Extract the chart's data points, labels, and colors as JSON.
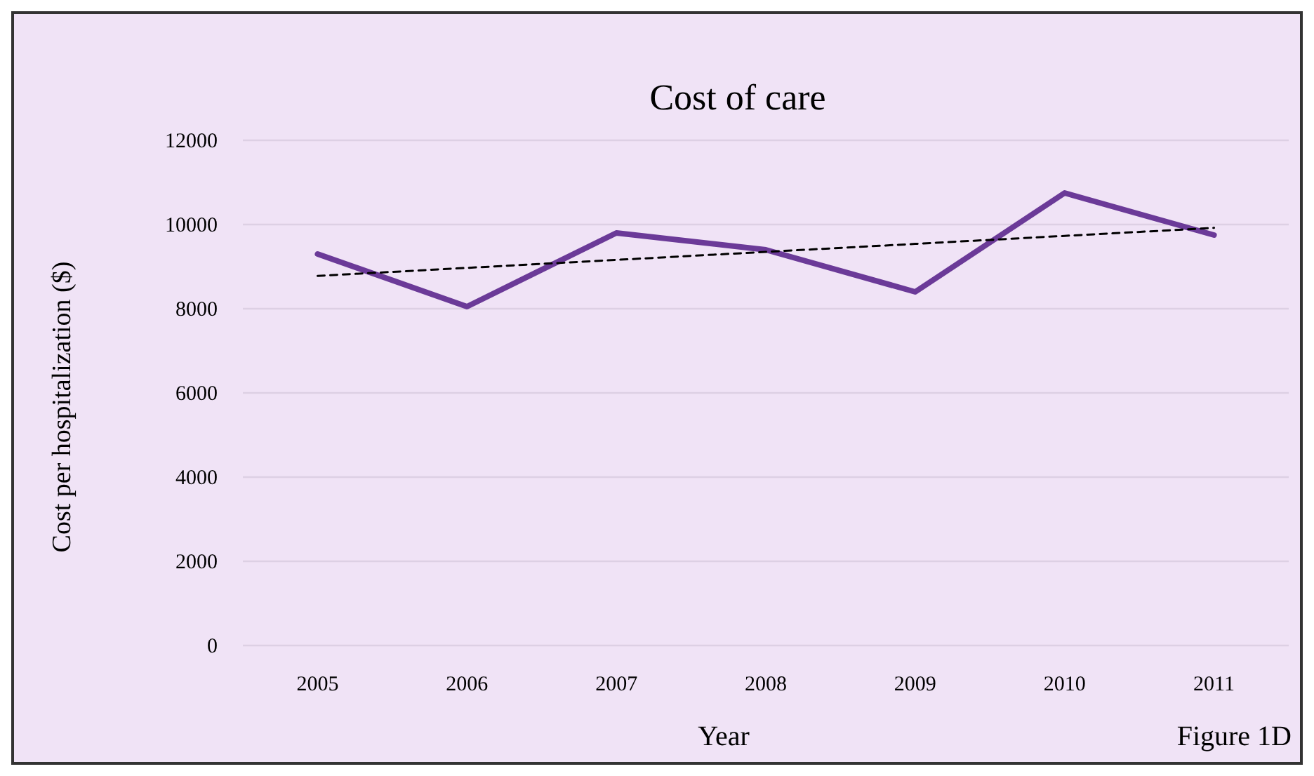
{
  "chart_data": {
    "type": "line",
    "title": "Cost of care",
    "xlabel": "Year",
    "ylabel": "Cost per hospitalization ($)",
    "annotations": [
      "Figure 1D"
    ],
    "categories": [
      "2005",
      "2006",
      "2007",
      "2008",
      "2009",
      "2010",
      "2011"
    ],
    "series": [
      {
        "color": "#6b3a98",
        "values": [
          9300,
          8050,
          9800,
          9400,
          8400,
          10750,
          9750
        ]
      },
      {
        "type": "line",
        "color": "#000000",
        "line_style": "dashed",
        "values": [
          8780,
          8970,
          9160,
          9350,
          9540,
          9730,
          9920
        ]
      }
    ],
    "ylim": [
      0,
      12000
    ],
    "yticks": [
      0,
      2000,
      4000,
      6000,
      8000,
      10000,
      12000
    ],
    "grid": "y",
    "marker": "none",
    "line_style": "solid"
  }
}
